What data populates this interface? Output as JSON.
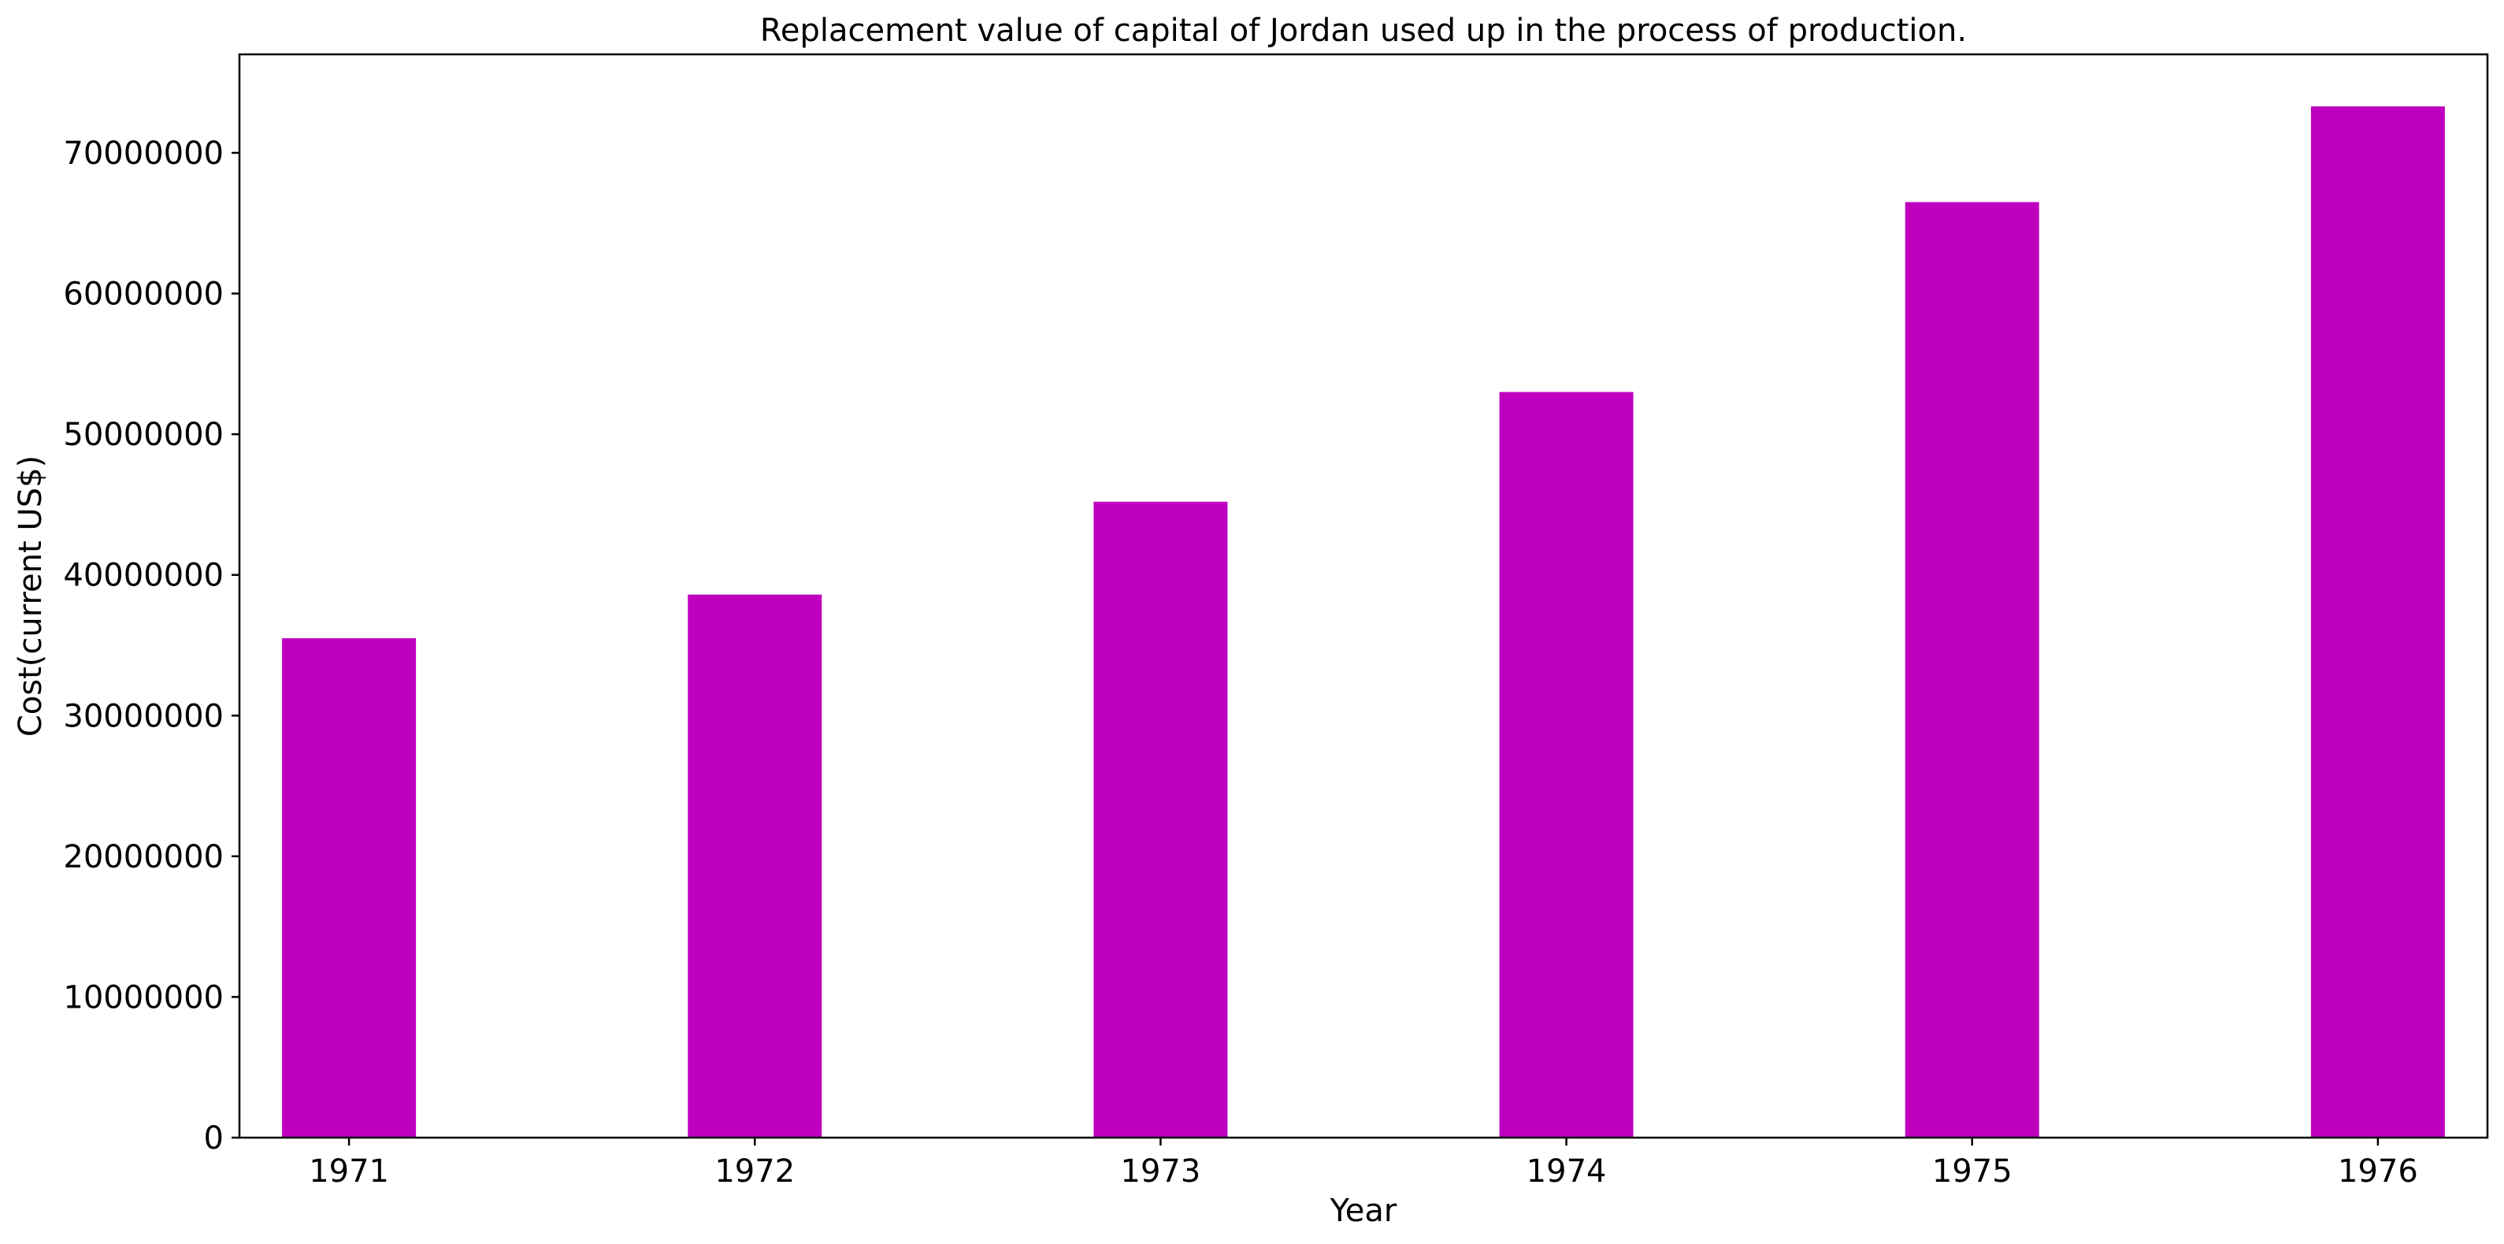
{
  "chart_data": {
    "type": "bar",
    "title": "Replacement value of capital of Jordan used up in the process of production.",
    "xlabel": "Year",
    "ylabel": "Cost(current US$)",
    "categories": [
      "1971",
      "1972",
      "1973",
      "1974",
      "1975",
      "1976"
    ],
    "values": [
      35500000,
      38600000,
      45200000,
      53000000,
      66500000,
      73300000
    ],
    "ylim": [
      0,
      77000000
    ],
    "yticks": [
      0,
      10000000,
      20000000,
      30000000,
      40000000,
      50000000,
      60000000,
      70000000
    ],
    "ytick_labels": [
      "0",
      "10000000",
      "20000000",
      "30000000",
      "40000000",
      "50000000",
      "60000000",
      "70000000"
    ],
    "bar_color": "#bf00bf",
    "grid": false,
    "legend": "none"
  }
}
